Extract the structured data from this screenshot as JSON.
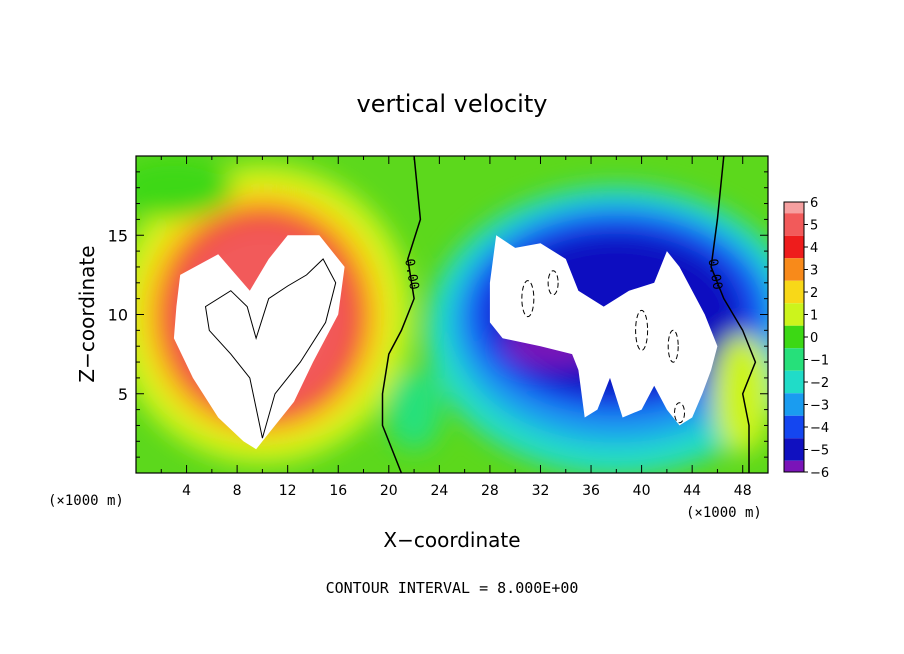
{
  "chart_data": {
    "type": "heatmap",
    "title": "vertical velocity",
    "xlabel": "X−coordinate",
    "ylabel": "Z−coordinate",
    "x_unit_left": "(×1000 m)",
    "x_unit_right": "(×1000 m)",
    "footer": "CONTOUR INTERVAL = 8.000E+00",
    "xlim": [
      0,
      50
    ],
    "ylim": [
      0,
      20
    ],
    "xticks": [
      4,
      8,
      12,
      16,
      20,
      24,
      28,
      32,
      36,
      40,
      44,
      48
    ],
    "yticks": [
      5,
      10,
      15
    ],
    "colorbar": {
      "labels": [
        "6",
        "5",
        "4",
        "3",
        "2",
        "1",
        "0",
        "−1",
        "−2",
        "−3",
        "−4",
        "−5",
        "−6"
      ],
      "colors": [
        "#f6a0a0",
        "#f25a5a",
        "#ee1c1c",
        "#f88a1a",
        "#f8d818",
        "#ccf41c",
        "#3cd814",
        "#26e07a",
        "#20dcc8",
        "#1a9cf0",
        "#1446f0",
        "#1010c0",
        "#7a14b8"
      ]
    },
    "contour_labels": [
      {
        "text": "0.00",
        "x": 21.5,
        "y": 12.5
      },
      {
        "text": "0.00",
        "x": 45.5,
        "y": 12.5
      }
    ]
  }
}
